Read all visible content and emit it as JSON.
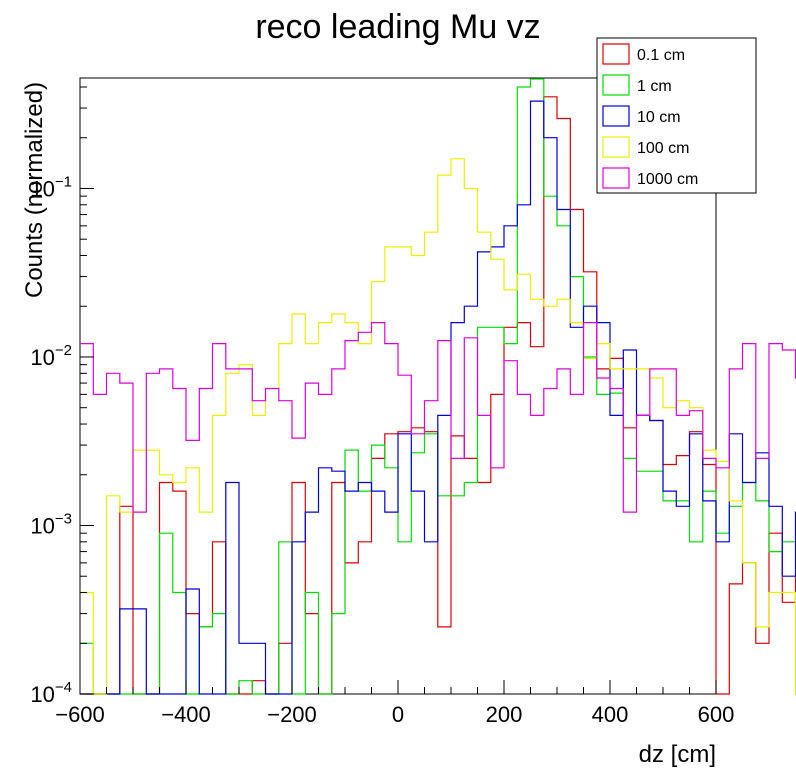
{
  "chart_data": {
    "type": "histogram",
    "title": "reco leading Mu vz",
    "xlabel": "dz [cm]",
    "ylabel": "Counts (normalized)",
    "xlim": [
      -600,
      600
    ],
    "ylim": [
      0.0001,
      0.5
    ],
    "yscale": "log",
    "bin_width": 25,
    "x_ticks": [
      -600,
      -400,
      -200,
      0,
      200,
      400,
      600
    ],
    "x_tick_labels": [
      "−600",
      "−400",
      "−200",
      "0",
      "200",
      "400",
      "600"
    ],
    "y_ticks": [
      {
        "value": 0.0001,
        "base": "10",
        "exp": "−4"
      },
      {
        "value": 0.001,
        "base": "10",
        "exp": "−3"
      },
      {
        "value": 0.01,
        "base": "10",
        "exp": "−2"
      },
      {
        "value": 0.1,
        "base": "10",
        "exp": "−1"
      }
    ],
    "legend_position": "top-right",
    "series": [
      {
        "name": "0.1 cm",
        "color": "#dd0000",
        "values": [
          0.0001,
          0.0001,
          0.0001,
          0.0013,
          0.0001,
          0.0001,
          0.0018,
          0.0016,
          0.0003,
          0.00025,
          0.0008,
          0.0001,
          0.0001,
          0.00012,
          0.0001,
          0.0002,
          0.0018,
          0.0003,
          0.0001,
          0.0018,
          0.0006,
          0.0008,
          0.0025,
          0.0035,
          0.0036,
          0.0038,
          0.0036,
          0.00025,
          0.0034,
          0.0025,
          0.0018,
          0.006,
          0.015,
          0.016,
          0.0115,
          0.35,
          0.26,
          0.075,
          0.032,
          0.0085,
          0.0098,
          0.0038,
          0.0045,
          0.0042,
          0.0023,
          0.0026,
          0.0036,
          0.0023,
          0.0001,
          0.00045,
          0.0006,
          0.0002,
          0.0009,
          0.00035,
          0.0005,
          0.0001,
          0.0001,
          0.0026,
          0.0016,
          0.0008,
          0.0004,
          0.0001,
          0.00035,
          0.00025,
          0.0002,
          0.0001,
          0.0001,
          0.0001,
          0.0001,
          0.0001,
          0.0001,
          0.0001,
          0.0001,
          0.0001,
          0.0001,
          0.0001,
          0.0001,
          0.0001,
          0.0001,
          0.0001
        ]
      },
      {
        "name": "1 cm",
        "color": "#00dd00",
        "values": [
          0.0002,
          0.0001,
          0.0001,
          0.0001,
          0.0001,
          0.0001,
          0.0009,
          0.0004,
          0.0001,
          0.00025,
          0.0003,
          0.0001,
          0.00012,
          0.0001,
          0.0001,
          0.0008,
          0.0001,
          0.0004,
          0.0001,
          0.0003,
          0.0028,
          0.0016,
          0.003,
          0.0022,
          0.0008,
          0.0027,
          0.0035,
          0.0015,
          0.0015,
          0.0018,
          0.015,
          0.015,
          0.012,
          0.4,
          0.45,
          0.09,
          0.06,
          0.03,
          0.01,
          0.006,
          0.0061,
          0.0025,
          0.0021,
          0.0021,
          0.0014,
          0.0014,
          0.0008,
          0.0016,
          0.0009,
          0.0013,
          0.0018,
          0.0014,
          0.0007,
          0.0008,
          0.0012,
          0.0003,
          0.0003,
          0.0003,
          0.0003,
          0.0002,
          0.0001,
          0.00012,
          0.0001,
          0.0001,
          0.0001,
          0.0001,
          0.0001,
          0.0001,
          0.0001,
          0.0001,
          0.0001,
          0.0001,
          0.0001,
          0.0001,
          0.0001,
          0.0001,
          0.0001,
          0.0001,
          0.0001,
          0.0001
        ]
      },
      {
        "name": "10 cm",
        "color": "#0000dd",
        "values": [
          0.0001,
          0.0001,
          0.0001,
          0.00032,
          0.00032,
          0.0001,
          0.0001,
          0.0001,
          0.00042,
          0.0001,
          0.0001,
          0.0018,
          0.0002,
          0.0002,
          0.0001,
          0.0001,
          0.0008,
          0.0012,
          0.0022,
          0.0021,
          0.0016,
          0.0018,
          0.0016,
          0.0012,
          0.0035,
          0.0016,
          0.0008,
          0.0045,
          0.016,
          0.02,
          0.042,
          0.045,
          0.06,
          0.08,
          0.33,
          0.2,
          0.075,
          0.015,
          0.02,
          0.016,
          0.0045,
          0.011,
          0.0045,
          0.0042,
          0.0016,
          0.0013,
          0.0035,
          0.0014,
          0.0008,
          0.0035,
          0.0018,
          0.0027,
          0.0013,
          0.0005,
          0.0012,
          0.0005,
          0.0001,
          0.0001,
          0.0001,
          0.0001,
          0.0001,
          0.0001,
          0.0001,
          0.0001,
          0.0001,
          0.0001,
          0.0001,
          0.0001,
          0.0001,
          0.0001,
          0.0001,
          0.0001,
          0.0001,
          0.0001,
          0.0001,
          0.0001,
          0.0001,
          0.0001,
          0.0001,
          0.0001
        ]
      },
      {
        "name": "100 cm",
        "color": "#eeee00",
        "values": [
          0.0004,
          0.0001,
          0.0015,
          0.0012,
          0.0028,
          0.0028,
          0.002,
          0.0018,
          0.0022,
          0.0012,
          0.0045,
          0.008,
          0.009,
          0.0045,
          0.0065,
          0.012,
          0.018,
          0.012,
          0.016,
          0.018,
          0.016,
          0.012,
          0.028,
          0.045,
          0.045,
          0.04,
          0.055,
          0.12,
          0.15,
          0.1,
          0.055,
          0.038,
          0.025,
          0.031,
          0.022,
          0.02,
          0.022,
          0.016,
          0.0098,
          0.012,
          0.0085,
          0.0085,
          0.0085,
          0.0075,
          0.005,
          0.0055,
          0.005,
          0.0028,
          0.0024,
          0.0014,
          0.0006,
          0.00025,
          0.0004,
          0.0004,
          0.0001,
          0.0001,
          0.00025,
          0.0001,
          0.0001,
          0.0001,
          0.0001,
          0.0001,
          0.0001,
          0.0001,
          0.0001,
          0.0001,
          0.0001,
          0.0001,
          0.0001,
          0.0001,
          0.0001,
          0.0001,
          0.0001,
          0.0001,
          0.0001,
          0.0001,
          0.0001,
          0.0001,
          0.0001,
          0.0001
        ]
      },
      {
        "name": "1000 cm",
        "color": "#dd00dd",
        "values": [
          0.012,
          0.006,
          0.008,
          0.007,
          0.0012,
          0.008,
          0.0085,
          0.0065,
          0.0032,
          0.0065,
          0.012,
          0.0085,
          0.0085,
          0.0055,
          0.0065,
          0.0055,
          0.0033,
          0.007,
          0.006,
          0.0085,
          0.0125,
          0.014,
          0.016,
          0.012,
          0.0078,
          0.0035,
          0.0055,
          0.0125,
          0.0025,
          0.013,
          0.0045,
          0.0022,
          0.0095,
          0.006,
          0.0045,
          0.0065,
          0.0085,
          0.006,
          0.016,
          0.0075,
          0.0065,
          0.0012,
          0.0045,
          0.0085,
          0.0085,
          0.0045,
          0.0048,
          0.0025,
          0.0022,
          0.0085,
          0.012,
          0.0025,
          0.012,
          0.011,
          0.0075,
          0.0055,
          0.0095,
          0.013,
          0.0045,
          0.0014,
          0.0045,
          0.0062,
          0.0075,
          0.0035,
          0.0085,
          0.0055,
          0.0085,
          0.008,
          0.0075,
          0.0035,
          0.0022,
          0.0011,
          0.0001,
          0.0001,
          0.0001,
          0.0001,
          0.0001,
          0.0001,
          0.0001,
          0.0001
        ]
      }
    ]
  }
}
